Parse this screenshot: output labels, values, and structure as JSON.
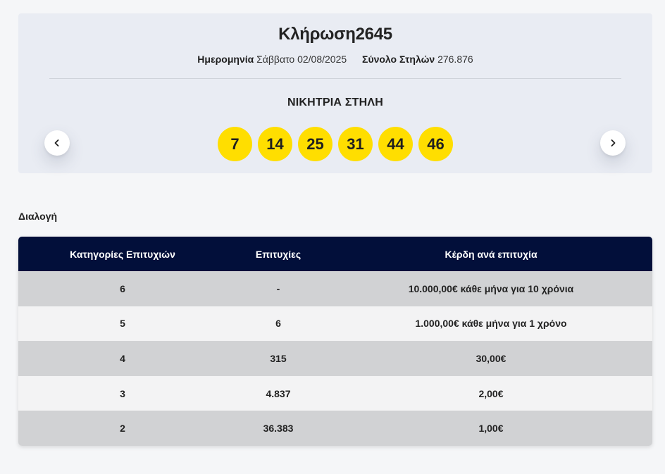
{
  "draw": {
    "title_prefix": "Κλήρωση",
    "number": "2645",
    "date_label": "Ημερομηνία",
    "date_value": "Σάββατο 02/08/2025",
    "total_label": "Σύνολο Στηλών",
    "total_value": "276.876",
    "winning_title": "ΝΙΚΗΤΡΙΑ ΣΤΗΛΗ",
    "numbers": [
      "7",
      "14",
      "25",
      "31",
      "44",
      "46"
    ],
    "ball_color": "#ffde00"
  },
  "nav": {
    "prev_icon": "chevron-left-icon",
    "next_icon": "chevron-right-icon"
  },
  "section": {
    "label": "Διαλογή"
  },
  "table": {
    "header_color": "#020f3a",
    "headers": [
      "Κατηγορίες Επιτυχιών",
      "Επιτυχίες",
      "Κέρδη ανά επιτυχία"
    ],
    "rows": [
      [
        "6",
        "-",
        "10.000,00€ κάθε μήνα για 10 χρόνια"
      ],
      [
        "5",
        "6",
        "1.000,00€ κάθε μήνα για 1 χρόνο"
      ],
      [
        "4",
        "315",
        "30,00€"
      ],
      [
        "3",
        "4.837",
        "2,00€"
      ],
      [
        "2",
        "36.383",
        "1,00€"
      ]
    ]
  }
}
